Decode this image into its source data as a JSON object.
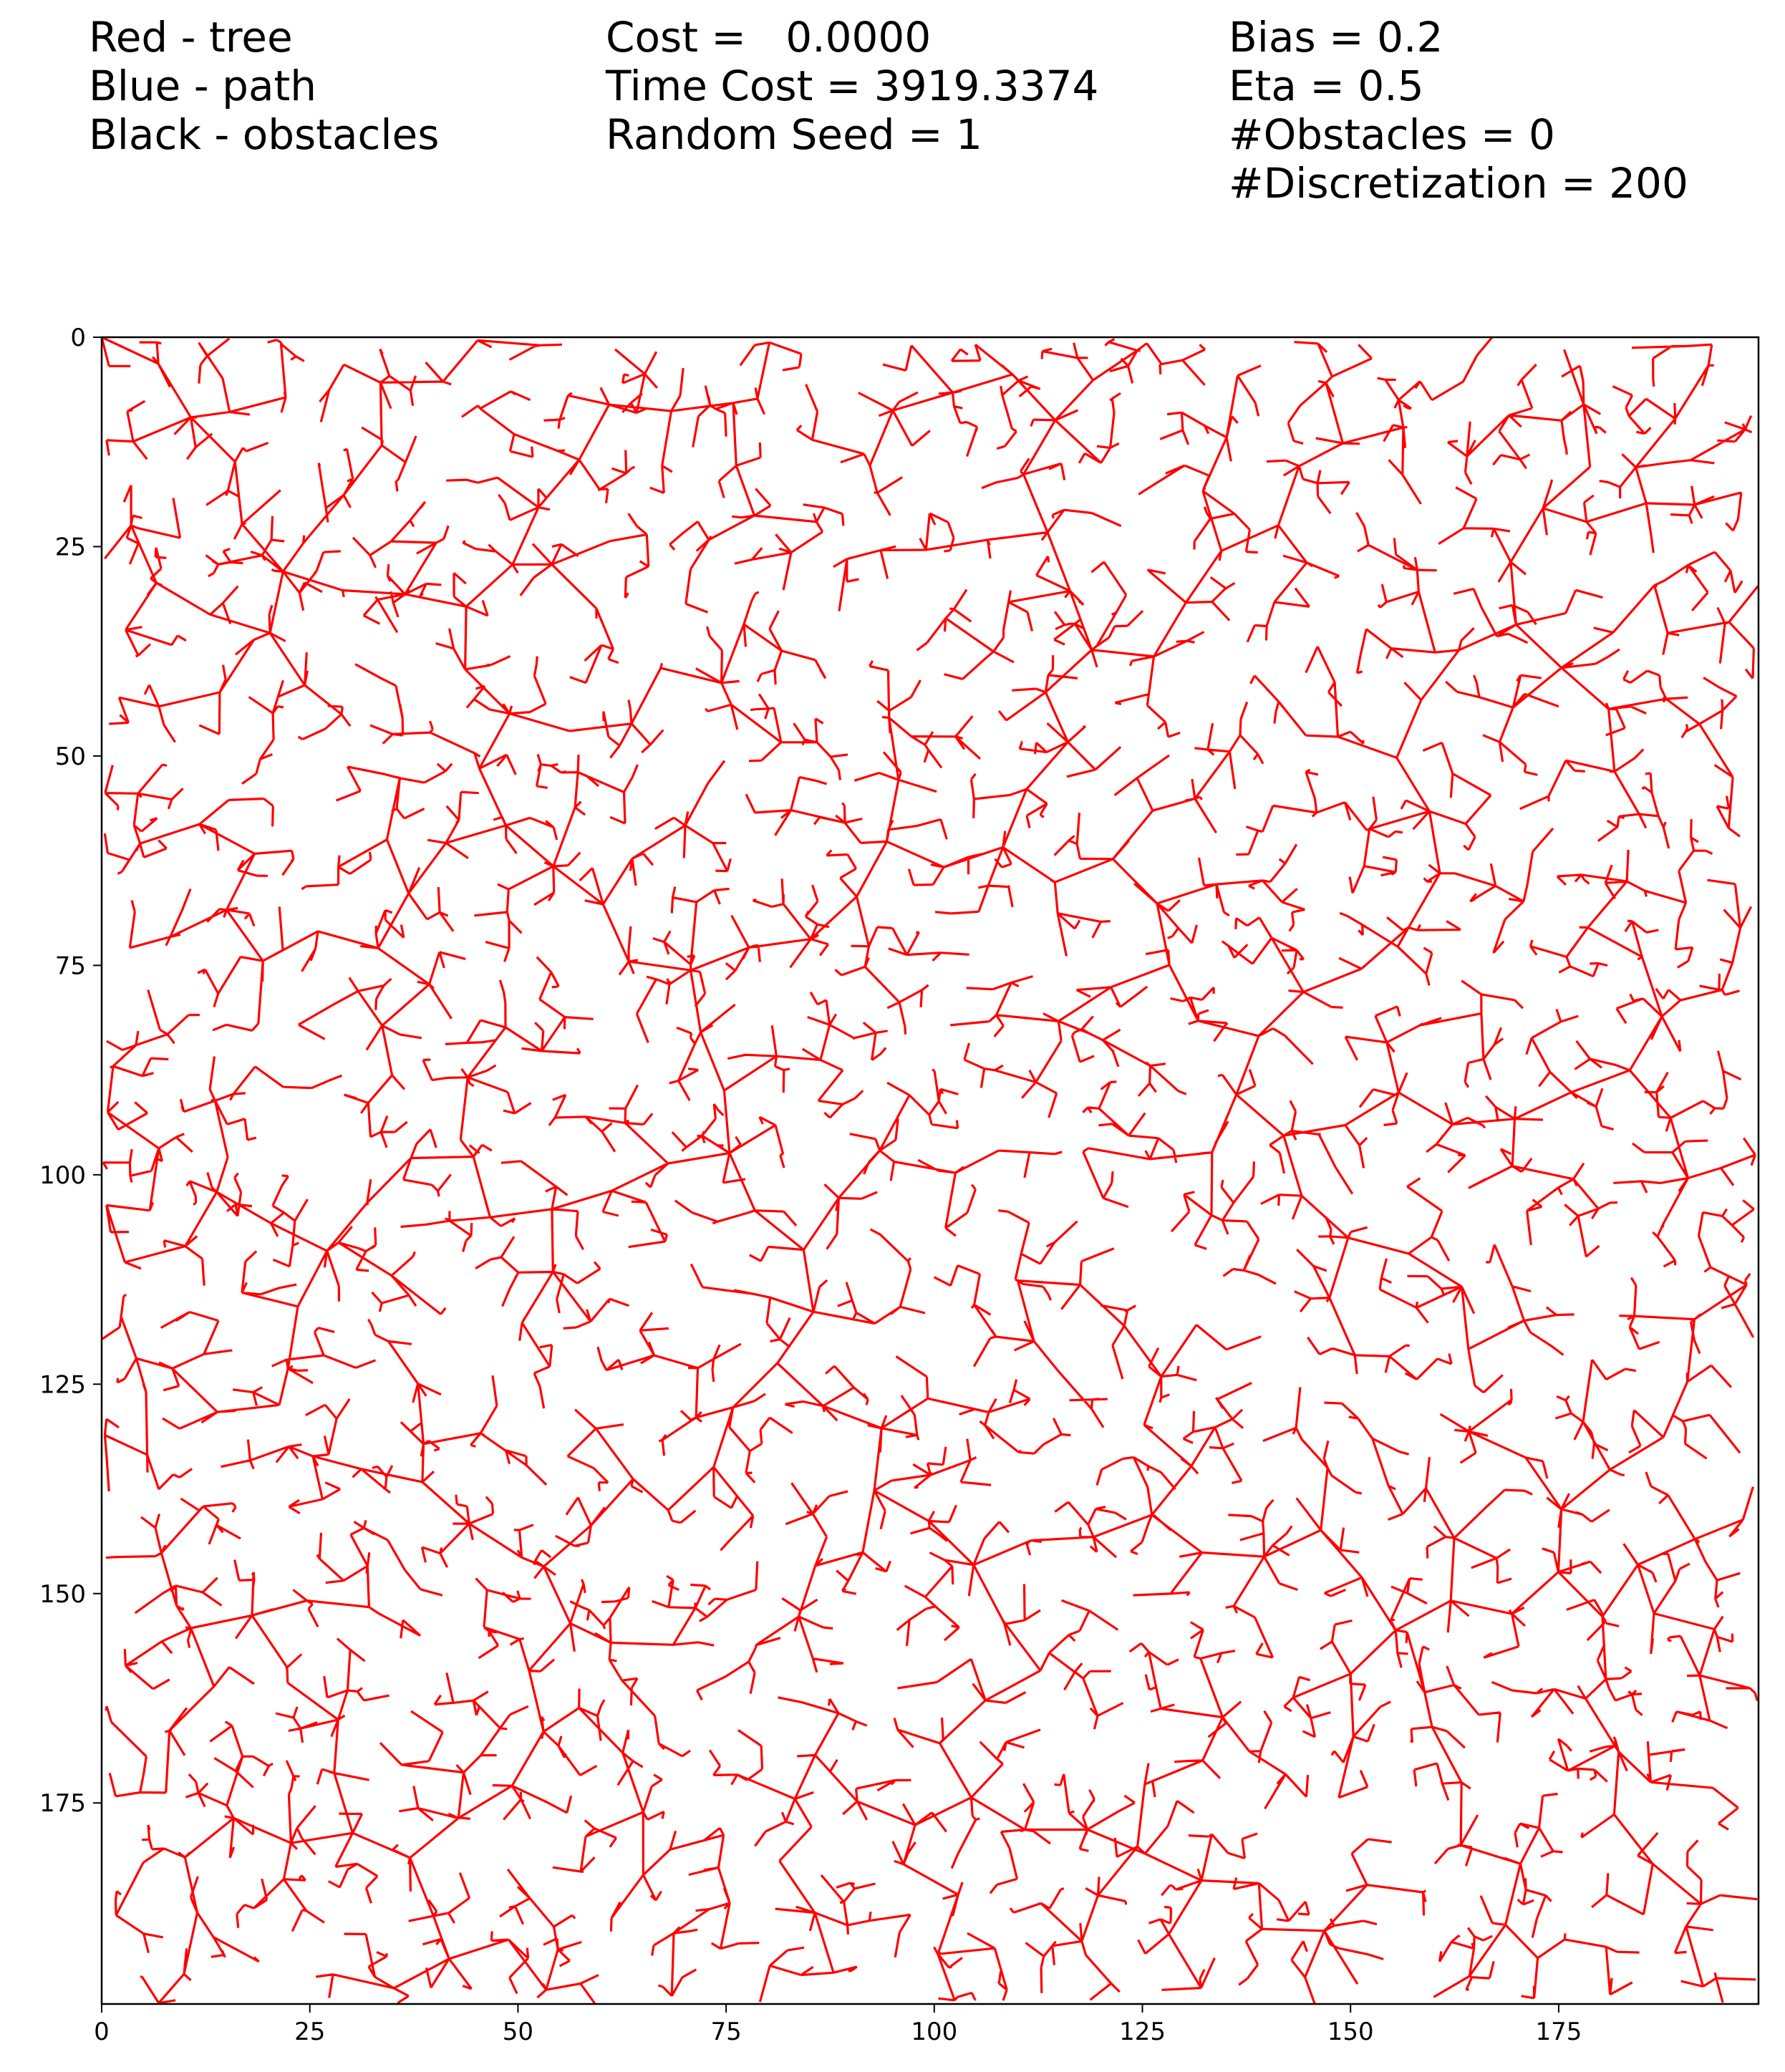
{
  "header": {
    "col1": [
      "Red - tree",
      "Blue - path",
      "Black - obstacles"
    ],
    "col2": [
      "Cost =   0.0000",
      "Time Cost = 3919.3374",
      "Random Seed = 1"
    ],
    "col3": [
      "Bias = 0.2",
      "Eta = 0.5",
      "#Obstacles = 0",
      "#Discretization = 200"
    ]
  },
  "chart_data": {
    "type": "tree-plot",
    "title": "",
    "xlabel": "",
    "ylabel": "",
    "xlim": [
      0,
      199
    ],
    "ylim": [
      199,
      0
    ],
    "y_axis_inverted": true,
    "grid": false,
    "x_ticks": [
      0,
      25,
      50,
      75,
      100,
      125,
      150,
      175
    ],
    "y_ticks": [
      0,
      25,
      50,
      75,
      100,
      125,
      150,
      175
    ],
    "x_tick_labels": [
      "0",
      "25",
      "50",
      "75",
      "100",
      "125",
      "150",
      "175"
    ],
    "y_tick_labels": [
      "0",
      "25",
      "50",
      "75",
      "100",
      "125",
      "150",
      "175"
    ],
    "series": [
      {
        "name": "tree",
        "color": "#ff0000",
        "root": [
          0,
          0
        ],
        "description": "dense RRT tree spanning the whole 200x200 grid"
      },
      {
        "name": "path",
        "color": "#0000ff",
        "points": []
      },
      {
        "name": "obstacles",
        "color": "#000000",
        "count": 0
      }
    ],
    "params": {
      "bias": 0.2,
      "eta": 0.5,
      "obstacles": 0,
      "discretization": 200,
      "random_seed": 1,
      "cost": 0.0,
      "time_cost": 3919.3374
    }
  }
}
